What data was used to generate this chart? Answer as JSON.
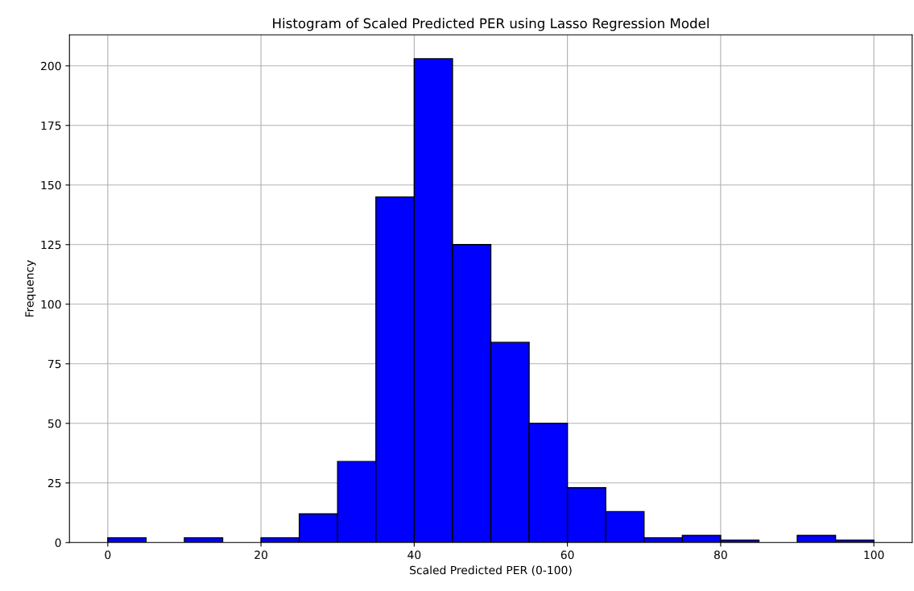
{
  "chart_data": {
    "type": "histogram",
    "title": "Histogram of Scaled Predicted PER using Lasso Regression Model",
    "xlabel": "Scaled Predicted PER (0-100)",
    "ylabel": "Frequency",
    "bins": [
      0,
      5,
      10,
      15,
      20,
      25,
      30,
      35,
      40,
      45,
      50,
      55,
      60,
      65,
      70,
      75,
      80,
      85,
      90,
      95,
      100
    ],
    "values": [
      2,
      0,
      2,
      0,
      2,
      12,
      34,
      145,
      203,
      125,
      84,
      50,
      23,
      13,
      2,
      3,
      1,
      0,
      3,
      1
    ],
    "color": "#0000ff",
    "xlim": [
      -5,
      105
    ],
    "ylim": [
      0,
      213
    ],
    "xticks": [
      0,
      20,
      40,
      60,
      80,
      100
    ],
    "yticks": [
      0,
      25,
      50,
      75,
      100,
      125,
      150,
      175,
      200
    ],
    "grid": true
  }
}
